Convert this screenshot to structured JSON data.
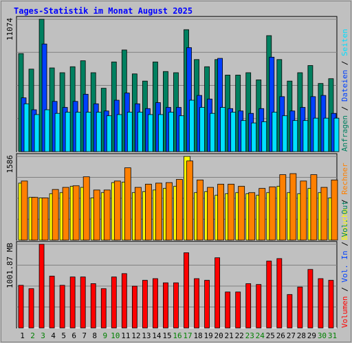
{
  "title": "Tages-Statistik im Monat August 2025",
  "colors": {
    "background": "#c0c0c0",
    "panel": "#c0c0c0",
    "title": "#0000ff",
    "grid": "#808080",
    "anfragen": "#008060",
    "dateien": "#0040ff",
    "seiten": "#00e0ff",
    "besuche": "#ffff00",
    "rechner": "#ff8000",
    "volumen": "#ff0000",
    "weekday_label": "#000000",
    "weekend_label": "#008000",
    "separator": "#000000"
  },
  "chart_data": [
    {
      "type": "bar",
      "panel": "top",
      "ylabel_value": "11074",
      "ymax": 11074,
      "grid": true,
      "legend": "right",
      "legend_items": [
        {
          "text": "Anfragen",
          "color_key": "anfragen"
        },
        {
          "text": "Dateien",
          "color_key": "dateien"
        },
        {
          "text": "Seiten",
          "color_key": "seiten"
        }
      ],
      "series": [
        {
          "name": "Anfragen",
          "color_key": "anfragen",
          "values": [
            8200,
            6900,
            11074,
            7000,
            6600,
            7100,
            7600,
            6600,
            5300,
            7500,
            8500,
            6500,
            5900,
            7500,
            6700,
            6600,
            10200,
            7700,
            7100,
            7700,
            6400,
            6400,
            6600,
            6000,
            9700,
            7700,
            5900,
            6600,
            7200,
            5700,
            6100
          ]
        },
        {
          "name": "Dateien",
          "color_key": "dateien",
          "values": [
            4500,
            3500,
            9000,
            4200,
            3700,
            4200,
            4800,
            4000,
            3400,
            4300,
            4900,
            4000,
            3600,
            4100,
            3700,
            3700,
            8700,
            4700,
            4400,
            7800,
            3600,
            3400,
            3200,
            3600,
            7900,
            4600,
            3400,
            3700,
            4600,
            4700,
            3200
          ]
        },
        {
          "name": "Seiten",
          "color_key": "seiten",
          "values": [
            4000,
            3100,
            3500,
            3200,
            3300,
            3300,
            3300,
            3300,
            3000,
            3100,
            3300,
            3300,
            3100,
            3100,
            3300,
            3000,
            4300,
            3700,
            3200,
            3700,
            3300,
            2600,
            2400,
            2500,
            3300,
            3000,
            2600,
            2600,
            2800,
            2800,
            2800
          ]
        }
      ]
    },
    {
      "type": "bar",
      "panel": "middle",
      "ylabel_value": "1586",
      "ymax": 1586,
      "grid": true,
      "legend": "right",
      "legend_items": [
        {
          "text": "Besuche",
          "color_key": "besuche"
        },
        {
          "text": "Rechner",
          "color_key": "rechner"
        }
      ],
      "series": [
        {
          "name": "Besuche",
          "color_key": "besuche",
          "values": [
            1080,
            810,
            800,
            880,
            900,
            1020,
            1000,
            800,
            900,
            1090,
            1100,
            900,
            920,
            950,
            980,
            1020,
            1586,
            900,
            920,
            850,
            880,
            900,
            880,
            850,
            900,
            1020,
            900,
            880,
            980,
            900,
            800
          ]
        },
        {
          "name": "Rechner",
          "color_key": "rechner",
          "values": [
            1120,
            810,
            800,
            960,
            1000,
            1030,
            1200,
            950,
            950,
            1120,
            1370,
            1000,
            1060,
            1080,
            1090,
            1150,
            1500,
            1140,
            1000,
            1060,
            1060,
            1020,
            900,
            980,
            1010,
            1240,
            1260,
            1120,
            1240,
            1000,
            1140
          ]
        }
      ]
    },
    {
      "type": "bar",
      "panel": "bottom",
      "ylabel_value": "1001.87 MB",
      "ymax": 1001.87,
      "grid": true,
      "legend": "right",
      "legend_items": [
        {
          "text": "Volumen",
          "color_key": "volumen"
        },
        {
          "text": "Vol. In",
          "color_key": "dateien"
        },
        {
          "text": "Vol. Out",
          "color_key": "anfragen"
        }
      ],
      "series": [
        {
          "name": "Volumen",
          "color_key": "volumen",
          "values": [
            510,
            470,
            1001.87,
            620,
            510,
            610,
            610,
            530,
            470,
            610,
            650,
            500,
            570,
            590,
            540,
            540,
            900,
            590,
            570,
            840,
            430,
            430,
            530,
            520,
            800,
            830,
            400,
            490,
            700,
            590,
            570
          ]
        }
      ]
    }
  ],
  "days": [
    "1",
    "2",
    "3",
    "4",
    "5",
    "6",
    "7",
    "8",
    "9",
    "10",
    "11",
    "12",
    "13",
    "14",
    "15",
    "16",
    "17",
    "18",
    "19",
    "20",
    "21",
    "22",
    "23",
    "24",
    "25",
    "26",
    "27",
    "28",
    "29",
    "30",
    "31"
  ],
  "weekend_days": [
    2,
    3,
    9,
    10,
    16,
    17,
    23,
    24,
    30,
    31
  ]
}
